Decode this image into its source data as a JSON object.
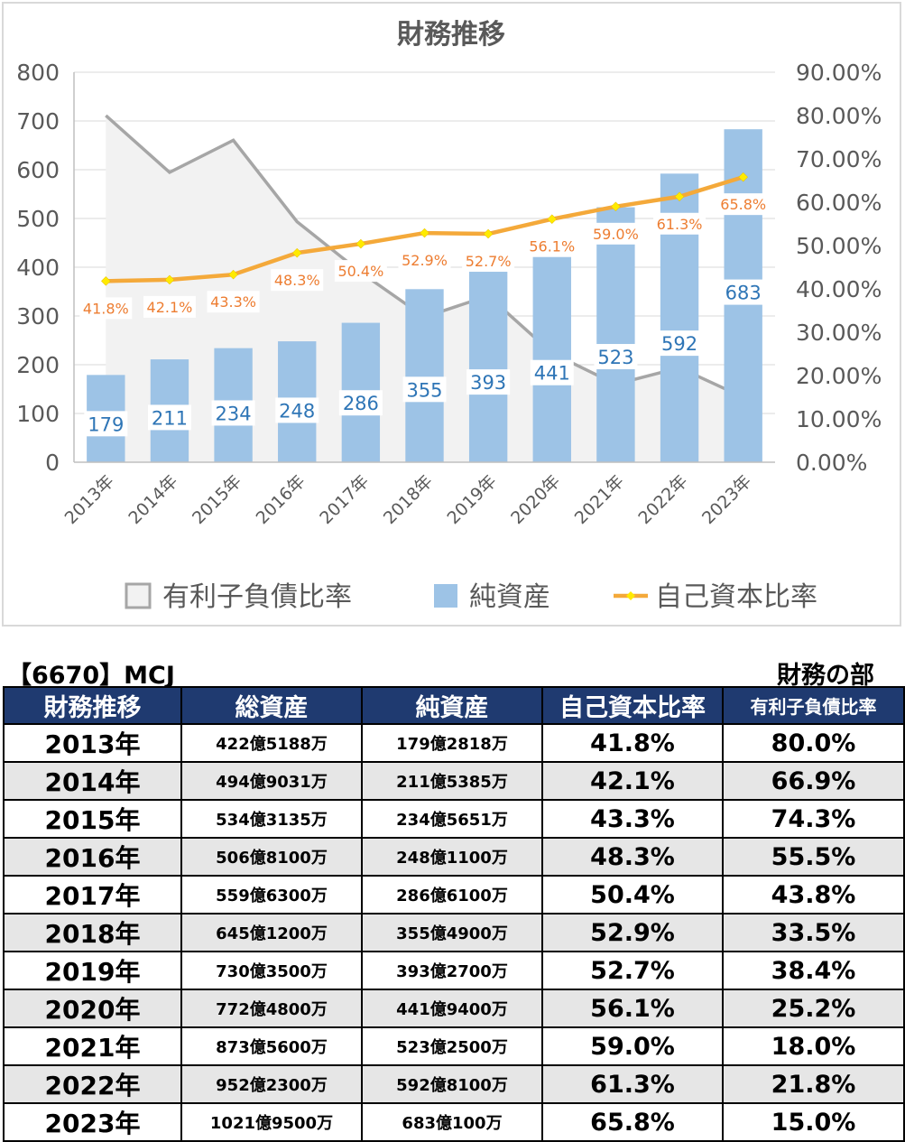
{
  "chart_data": {
    "type": "bar",
    "title": "財務推移",
    "categories": [
      "2013年",
      "2014年",
      "2015年",
      "2016年",
      "2017年",
      "2018年",
      "2019年",
      "2020年",
      "2021年",
      "2022年",
      "2023年"
    ],
    "series": [
      {
        "name": "有利子負債比率",
        "type": "area",
        "axis": "right",
        "color": "#a6a6a6",
        "fill": "#f2f2f2",
        "values": [
          80.0,
          66.9,
          74.3,
          55.5,
          43.8,
          33.5,
          38.4,
          25.2,
          18.0,
          21.8,
          15.0
        ]
      },
      {
        "name": "純資産",
        "type": "bar",
        "axis": "left",
        "color": "#9dc3e6",
        "label_color": "#2e75b6",
        "values": [
          179,
          211,
          234,
          248,
          286,
          355,
          393,
          441,
          523,
          592,
          683
        ]
      },
      {
        "name": "自己資本比率",
        "type": "line",
        "axis": "right",
        "color": "#f4a93a",
        "marker_color": "#ffea00",
        "label_color": "#ed7d31",
        "values": [
          41.8,
          42.1,
          43.3,
          48.3,
          50.4,
          52.9,
          52.7,
          56.1,
          59.0,
          61.3,
          65.8
        ],
        "labels": [
          "41.8%",
          "42.1%",
          "43.3%",
          "48.3%",
          "50.4%",
          "52.9%",
          "52.7%",
          "56.1%",
          "59.0%",
          "61.3%",
          "65.8%"
        ]
      }
    ],
    "y_left": {
      "ylim": [
        0,
        800
      ],
      "ticks": [
        "0",
        "100",
        "200",
        "300",
        "400",
        "500",
        "600",
        "700",
        "800"
      ]
    },
    "y_right": {
      "ylim": [
        0,
        90
      ],
      "ticks": [
        "0.00%",
        "10.00%",
        "20.00%",
        "30.00%",
        "40.00%",
        "50.00%",
        "60.00%",
        "70.00%",
        "80.00%",
        "90.00%"
      ]
    },
    "grid": true,
    "legend_position": "bottom"
  },
  "header": {
    "code": "【6670】MCJ",
    "section": "財務の部"
  },
  "table": {
    "columns": [
      "財務推移",
      "総資産",
      "純資産",
      "自己資本比率",
      "有利子負債比率"
    ],
    "rows": [
      [
        "2013年",
        "422億5188万",
        "179億2818万",
        "41.8%",
        "80.0%"
      ],
      [
        "2014年",
        "494億9031万",
        "211億5385万",
        "42.1%",
        "66.9%"
      ],
      [
        "2015年",
        "534億3135万",
        "234億5651万",
        "43.3%",
        "74.3%"
      ],
      [
        "2016年",
        "506億8100万",
        "248億1100万",
        "48.3%",
        "55.5%"
      ],
      [
        "2017年",
        "559億6300万",
        "286億6100万",
        "50.4%",
        "43.8%"
      ],
      [
        "2018年",
        "645億1200万",
        "355億4900万",
        "52.9%",
        "33.5%"
      ],
      [
        "2019年",
        "730億3500万",
        "393億2700万",
        "52.7%",
        "38.4%"
      ],
      [
        "2020年",
        "772億4800万",
        "441億9400万",
        "56.1%",
        "25.2%"
      ],
      [
        "2021年",
        "873億5600万",
        "523億2500万",
        "59.0%",
        "18.0%"
      ],
      [
        "2022年",
        "952億2300万",
        "592億8100万",
        "61.3%",
        "21.8%"
      ],
      [
        "2023年",
        "1021億9500万",
        "683億100万",
        "65.8%",
        "15.0%"
      ]
    ]
  }
}
